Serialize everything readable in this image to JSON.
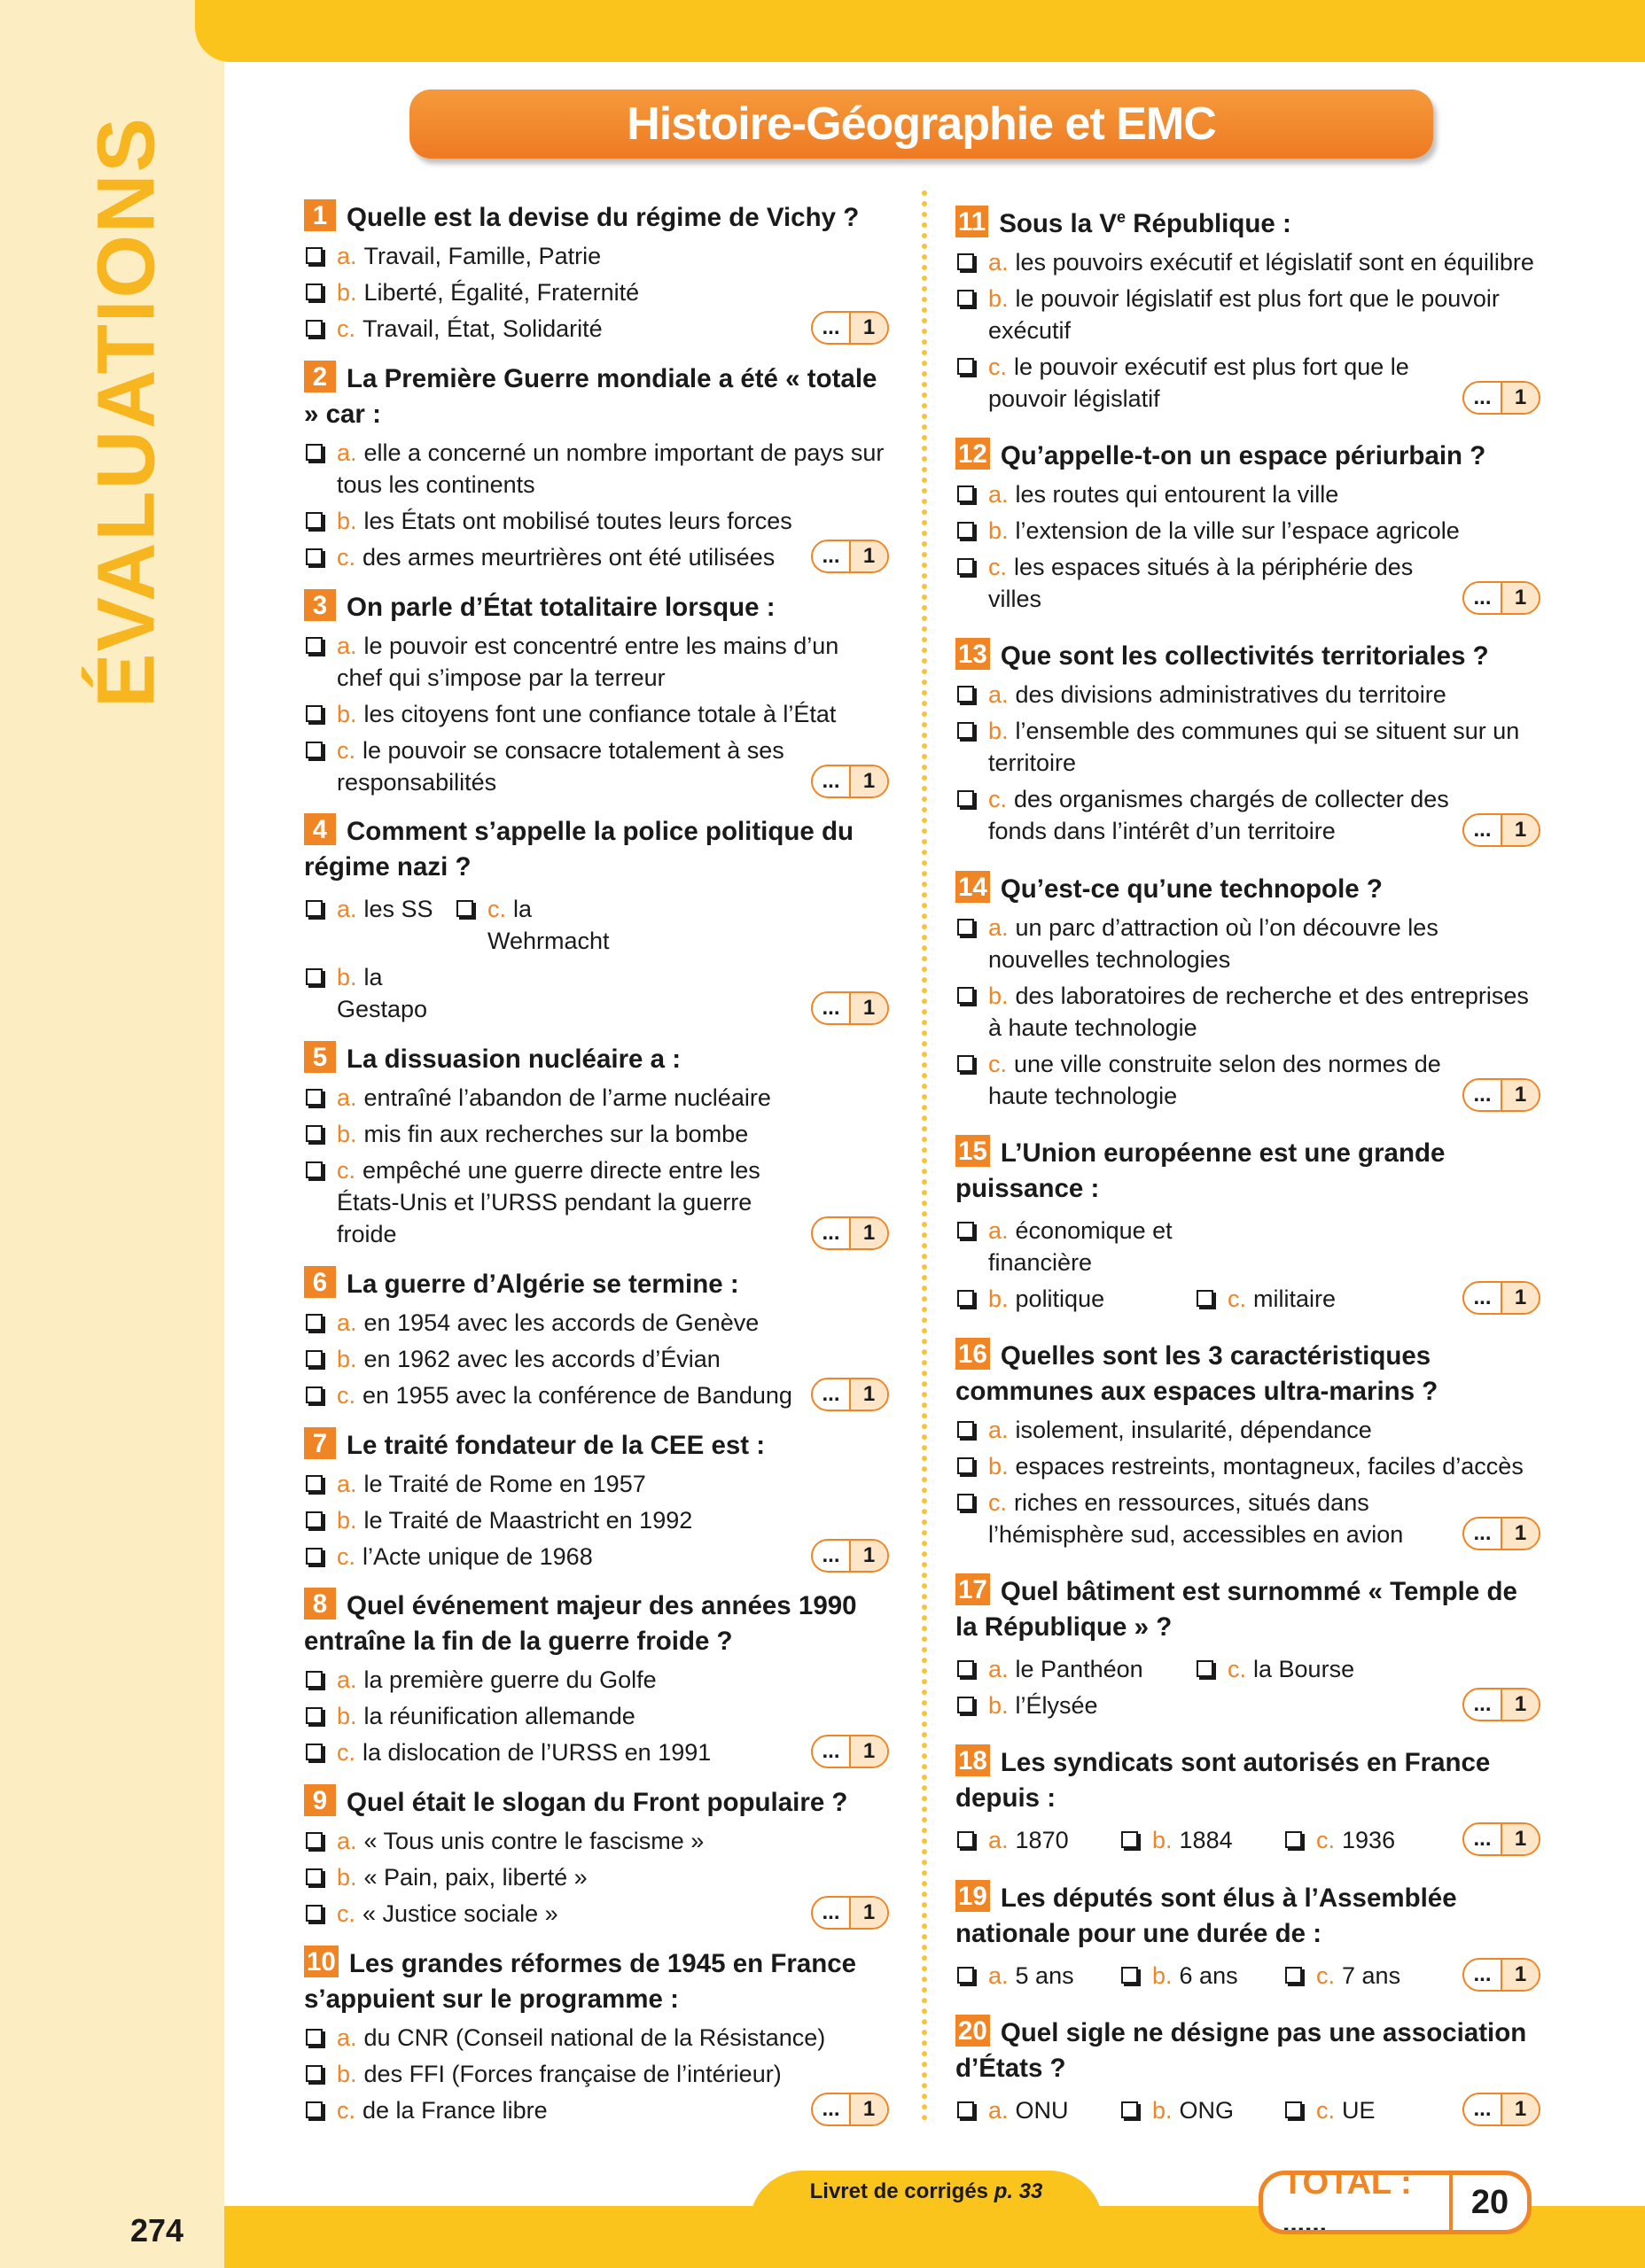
{
  "side_label": "ÉVALUATIONS",
  "header": {
    "title": "Histoire-Géographie et EMC"
  },
  "questions": [
    {
      "number": "1",
      "text": "Quelle est la devise du régime de Vichy ?",
      "options": [
        {
          "letter": "a.",
          "text": "Travail, Famille, Patrie"
        },
        {
          "letter": "b.",
          "text": "Liberté, Égalité, Fraternité"
        },
        {
          "letter": "c.",
          "text": "Travail, État, Solidarité"
        }
      ],
      "score": {
        "blank": "...",
        "points": "1"
      }
    },
    {
      "number": "2",
      "text": "La Première Guerre mondiale a été « totale » car :",
      "options": [
        {
          "letter": "a.",
          "text": "elle a concerné un nombre important de pays sur tous les continents"
        },
        {
          "letter": "b.",
          "text": "les États ont mobilisé toutes leurs forces"
        },
        {
          "letter": "c.",
          "text": "des armes meurtrières ont été utilisées"
        }
      ],
      "score": {
        "blank": "...",
        "points": "1"
      }
    },
    {
      "number": "3",
      "text": "On parle d’État totalitaire lorsque :",
      "options": [
        {
          "letter": "a.",
          "text": "le pouvoir est concentré entre les mains d’un chef qui s’impose par la terreur"
        },
        {
          "letter": "b.",
          "text": "les citoyens font une confiance totale à l’État"
        },
        {
          "letter": "c.",
          "text": "le pouvoir se consacre totalement à ses responsabilités"
        }
      ],
      "score": {
        "blank": "...",
        "points": "1"
      }
    },
    {
      "number": "4",
      "text": "Comment s’appelle la police politique du régime nazi ?",
      "options": [
        {
          "letter": "a.",
          "text": "les SS"
        },
        {
          "letter": "b.",
          "text": "la Gestapo"
        },
        {
          "letter": "c.",
          "text": "la Wehrmacht"
        }
      ],
      "score": {
        "blank": "...",
        "points": "1"
      }
    },
    {
      "number": "5",
      "text": "La dissuasion nucléaire a :",
      "options": [
        {
          "letter": "a.",
          "text": "entraîné l’abandon de l’arme nucléaire"
        },
        {
          "letter": "b.",
          "text": "mis fin aux recherches sur la bombe"
        },
        {
          "letter": "c.",
          "text": "empêché une guerre directe entre les États-Unis et l’URSS pendant la guerre froide"
        }
      ],
      "score": {
        "blank": "...",
        "points": "1"
      }
    },
    {
      "number": "6",
      "text": "La guerre d’Algérie se termine :",
      "options": [
        {
          "letter": "a.",
          "text": "en 1954 avec les accords de Genève"
        },
        {
          "letter": "b.",
          "text": "en 1962 avec les accords d’Évian"
        },
        {
          "letter": "c.",
          "text": "en 1955 avec la conférence de Bandung"
        }
      ],
      "score": {
        "blank": "...",
        "points": "1"
      }
    },
    {
      "number": "7",
      "text": "Le traité fondateur de la CEE est :",
      "options": [
        {
          "letter": "a.",
          "text": "le Traité de Rome en 1957"
        },
        {
          "letter": "b.",
          "text": "le Traité de Maastricht en 1992"
        },
        {
          "letter": "c.",
          "text": "l’Acte unique de 1968"
        }
      ],
      "score": {
        "blank": "...",
        "points": "1"
      }
    },
    {
      "number": "8",
      "text": "Quel événement majeur des années 1990 entraîne la fin de la guerre froide ?",
      "options": [
        {
          "letter": "a.",
          "text": "la première guerre du Golfe"
        },
        {
          "letter": "b.",
          "text": "la réunification allemande"
        },
        {
          "letter": "c.",
          "text": "la dislocation de l’URSS en 1991"
        }
      ],
      "score": {
        "blank": "...",
        "points": "1"
      }
    },
    {
      "number": "9",
      "text": "Quel était le slogan du Front populaire ?",
      "options": [
        {
          "letter": "a.",
          "text": "« Tous unis contre le fascisme »"
        },
        {
          "letter": "b.",
          "text": "« Pain, paix, liberté »"
        },
        {
          "letter": "c.",
          "text": "« Justice sociale »"
        }
      ],
      "score": {
        "blank": "...",
        "points": "1"
      }
    },
    {
      "number": "10",
      "text": "Les grandes réformes de 1945 en France s’appuient sur le programme :",
      "options": [
        {
          "letter": "a.",
          "text": "du CNR (Conseil national de la Résistance)"
        },
        {
          "letter": "b.",
          "text": "des FFI (Forces française de l’intérieur)"
        },
        {
          "letter": "c.",
          "text": "de la France libre"
        }
      ],
      "score": {
        "blank": "...",
        "points": "1"
      }
    },
    {
      "number": "11",
      "text": "Sous la V",
      "sup": "e",
      "text_after": " République :",
      "options": [
        {
          "letter": "a.",
          "text": "les pouvoirs exécutif et législatif sont en équilibre"
        },
        {
          "letter": "b.",
          "text": "le pouvoir législatif est plus fort que le pouvoir exécutif"
        },
        {
          "letter": "c.",
          "text": "le pouvoir exécutif est plus fort que le pouvoir législatif"
        }
      ],
      "score": {
        "blank": "...",
        "points": "1"
      }
    },
    {
      "number": "12",
      "text": "Qu’appelle-t-on un espace périurbain ?",
      "options": [
        {
          "letter": "a.",
          "text": "les routes qui entourent la ville"
        },
        {
          "letter": "b.",
          "text": "l’extension de la ville sur l’espace agricole"
        },
        {
          "letter": "c.",
          "text": "les espaces situés à la périphérie des villes"
        }
      ],
      "score": {
        "blank": "...",
        "points": "1"
      }
    },
    {
      "number": "13",
      "text": "Que sont les collectivités territoriales ?",
      "options": [
        {
          "letter": "a.",
          "text": "des divisions administratives du territoire"
        },
        {
          "letter": "b.",
          "text": "l’ensemble des communes qui se situent sur un territoire"
        },
        {
          "letter": "c.",
          "text": "des organismes chargés de collecter des fonds dans l’intérêt d’un territoire"
        }
      ],
      "score": {
        "blank": "...",
        "points": "1"
      }
    },
    {
      "number": "14",
      "text": "Qu’est-ce qu’une technopole ?",
      "options": [
        {
          "letter": "a.",
          "text": "un parc d’attraction où l’on découvre les nouvelles technologies"
        },
        {
          "letter": "b.",
          "text": "des laboratoires de recherche et des entreprises à haute technologie"
        },
        {
          "letter": "c.",
          "text": "une ville construite selon des normes de haute technologie"
        }
      ],
      "score": {
        "blank": "...",
        "points": "1"
      }
    },
    {
      "number": "15",
      "text": "L’Union européenne est une grande puissance :",
      "options": [
        {
          "letter": "a.",
          "text": "économique et financière"
        },
        {
          "letter": "b.",
          "text": "politique"
        },
        {
          "letter": "c.",
          "text": "militaire"
        }
      ],
      "score": {
        "blank": "...",
        "points": "1"
      }
    },
    {
      "number": "16",
      "text": "Quelles sont les 3 caractéristiques communes aux espaces ultra-marins ?",
      "options": [
        {
          "letter": "a.",
          "text": "isolement, insularité, dépendance"
        },
        {
          "letter": "b.",
          "text": "espaces restreints, montagneux, faciles d’accès"
        },
        {
          "letter": "c.",
          "text": "riches en ressources, situés dans l’hémisphère sud, accessibles en avion"
        }
      ],
      "score": {
        "blank": "...",
        "points": "1"
      }
    },
    {
      "number": "17",
      "text": "Quel bâtiment est surnommé « Temple de la République » ?",
      "options": [
        {
          "letter": "a.",
          "text": "le Panthéon"
        },
        {
          "letter": "b.",
          "text": "l’Élysée"
        },
        {
          "letter": "c.",
          "text": "la Bourse"
        }
      ],
      "score": {
        "blank": "...",
        "points": "1"
      }
    },
    {
      "number": "18",
      "text": "Les syndicats sont autorisés en France depuis :",
      "options": [
        {
          "letter": "a.",
          "text": "1870"
        },
        {
          "letter": "b.",
          "text": "1884"
        },
        {
          "letter": "c.",
          "text": "1936"
        }
      ],
      "score": {
        "blank": "...",
        "points": "1"
      }
    },
    {
      "number": "19",
      "text": "Les députés sont élus à l’Assemblée nationale pour une durée de :",
      "options": [
        {
          "letter": "a.",
          "text": "5 ans"
        },
        {
          "letter": "b.",
          "text": "6 ans"
        },
        {
          "letter": "c.",
          "text": "7 ans"
        }
      ],
      "score": {
        "blank": "...",
        "points": "1"
      }
    },
    {
      "number": "20",
      "text": "Quel sigle ne désigne pas une association d’États ?",
      "options": [
        {
          "letter": "a.",
          "text": "ONU"
        },
        {
          "letter": "b.",
          "text": "ONG"
        },
        {
          "letter": "c.",
          "text": "UE"
        }
      ],
      "score": {
        "blank": "...",
        "points": "1"
      }
    }
  ],
  "footer": {
    "text": "Livret de corrigés ",
    "page_ref": "p. 33",
    "page_number": "274",
    "total": {
      "label": "TOTAL :",
      "blank": "......",
      "value": "20"
    }
  }
}
